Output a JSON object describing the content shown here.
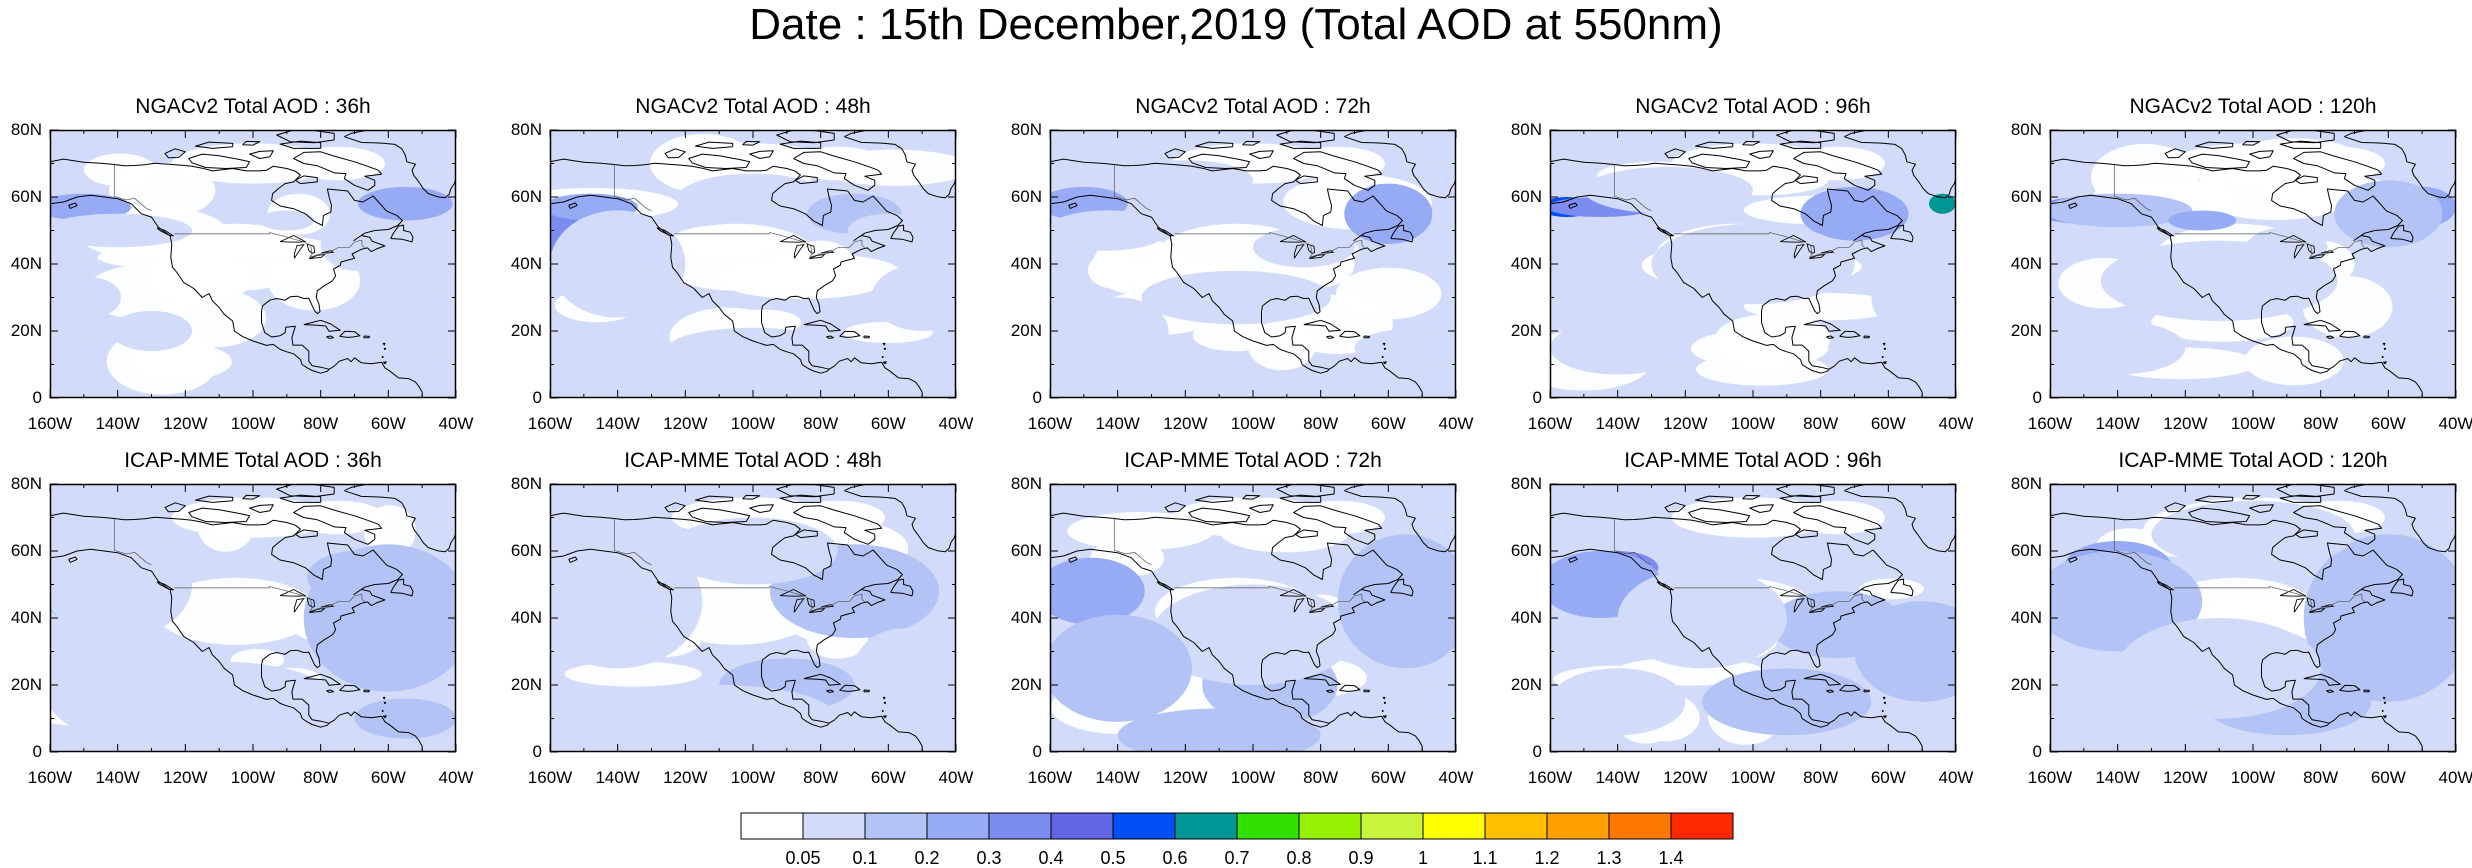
{
  "title": "Date : 15th December,2019 (Total AOD at 550nm)",
  "panels": [
    {
      "title": "NGACv2 Total AOD : 36h",
      "blobs": [
        [
          -150,
          57,
          14,
          4,
          3
        ],
        [
          -140,
          50,
          22,
          5,
          1
        ],
        [
          -55,
          58,
          14,
          5,
          3
        ],
        [
          -148,
          30,
          9,
          6,
          1
        ],
        [
          -90,
          53,
          8,
          3,
          1
        ],
        [
          -70,
          46,
          10,
          8,
          1
        ],
        [
          -130,
          20,
          12,
          6,
          1
        ],
        [
          -50,
          20,
          14,
          6,
          1
        ]
      ]
    },
    {
      "title": "NGACv2 Total AOD : 48h",
      "blobs": [
        [
          -157,
          50,
          6,
          7,
          4
        ],
        [
          -148,
          57,
          14,
          4,
          3
        ],
        [
          -140,
          40,
          20,
          16,
          1
        ],
        [
          -100,
          60,
          22,
          7,
          1
        ],
        [
          -70,
          55,
          14,
          6,
          2
        ],
        [
          -60,
          50,
          12,
          5,
          1
        ],
        [
          -100,
          15,
          25,
          6,
          1
        ],
        [
          -50,
          30,
          15,
          10,
          1
        ]
      ]
    },
    {
      "title": "NGACv2 Total AOD : 72h",
      "blobs": [
        [
          -150,
          58,
          13,
          5,
          3
        ],
        [
          -143,
          50,
          18,
          6,
          1
        ],
        [
          -58,
          53,
          8,
          6,
          4
        ],
        [
          -60,
          55,
          13,
          9,
          3
        ],
        [
          -120,
          65,
          20,
          6,
          1
        ],
        [
          -105,
          30,
          28,
          8,
          1
        ],
        [
          -85,
          45,
          15,
          6,
          1
        ],
        [
          -50,
          15,
          20,
          6,
          1
        ],
        [
          -140,
          20,
          15,
          10,
          1
        ]
      ]
    },
    {
      "title": "NGACv2 Total AOD : 96h",
      "blobs": [
        [
          -155,
          57,
          8,
          3,
          6
        ],
        [
          -145,
          57,
          16,
          3,
          4
        ],
        [
          -68,
          57,
          7,
          4,
          5
        ],
        [
          -67,
          57,
          4,
          3,
          10
        ],
        [
          -44,
          58,
          4,
          3,
          7
        ],
        [
          -70,
          55,
          16,
          8,
          3
        ],
        [
          -125,
          62,
          25,
          7,
          1
        ],
        [
          -100,
          40,
          30,
          12,
          1
        ],
        [
          -140,
          15,
          20,
          8,
          1
        ],
        [
          -50,
          30,
          15,
          12,
          1
        ]
      ]
    },
    {
      "title": "NGACv2 Total AOD : 120h",
      "blobs": [
        [
          -150,
          56,
          14,
          4,
          4
        ],
        [
          -140,
          56,
          22,
          5,
          2
        ],
        [
          -115,
          53,
          10,
          3,
          3
        ],
        [
          -50,
          57,
          10,
          6,
          3
        ],
        [
          -60,
          55,
          16,
          10,
          2
        ],
        [
          -110,
          35,
          35,
          12,
          1
        ],
        [
          -140,
          15,
          20,
          8,
          1
        ],
        [
          -90,
          45,
          12,
          6,
          1
        ]
      ]
    },
    {
      "title": "ICAP-MME Total AOD : 36h",
      "blobs": [
        [
          -150,
          48,
          12,
          10,
          2
        ],
        [
          -140,
          50,
          22,
          16,
          1
        ],
        [
          -60,
          40,
          25,
          22,
          2
        ],
        [
          -70,
          52,
          14,
          8,
          2
        ],
        [
          -110,
          15,
          35,
          12,
          1
        ],
        [
          -140,
          20,
          22,
          16,
          1
        ],
        [
          -55,
          10,
          15,
          6,
          2
        ]
      ]
    },
    {
      "title": "ICAP-MME Total AOD : 48h",
      "blobs": [
        [
          -148,
          52,
          12,
          10,
          2
        ],
        [
          -140,
          45,
          25,
          20,
          1
        ],
        [
          -70,
          48,
          25,
          14,
          2
        ],
        [
          -90,
          20,
          20,
          8,
          2
        ],
        [
          -110,
          10,
          35,
          10,
          1
        ],
        [
          -55,
          25,
          15,
          12,
          1
        ],
        [
          -100,
          60,
          25,
          10,
          1
        ]
      ]
    },
    {
      "title": "ICAP-MME Total AOD : 72h",
      "blobs": [
        [
          -148,
          48,
          9,
          5,
          4
        ],
        [
          -148,
          48,
          16,
          10,
          3
        ],
        [
          -97,
          15,
          7,
          6,
          4
        ],
        [
          -95,
          20,
          20,
          12,
          2
        ],
        [
          -100,
          35,
          30,
          15,
          1
        ],
        [
          -55,
          45,
          20,
          20,
          2
        ],
        [
          -140,
          25,
          22,
          16,
          2
        ],
        [
          -110,
          5,
          30,
          8,
          2
        ]
      ]
    },
    {
      "title": "ICAP-MME Total AOD : 96h",
      "blobs": [
        [
          -140,
          55,
          12,
          5,
          4
        ],
        [
          -145,
          50,
          18,
          10,
          3
        ],
        [
          -75,
          38,
          20,
          10,
          2
        ],
        [
          -50,
          30,
          20,
          15,
          2
        ],
        [
          -115,
          40,
          25,
          15,
          1
        ],
        [
          -90,
          15,
          25,
          10,
          2
        ],
        [
          -140,
          15,
          20,
          10,
          1
        ]
      ]
    },
    {
      "title": "ICAP-MME Total AOD : 120h",
      "blobs": [
        [
          -140,
          55,
          16,
          8,
          3
        ],
        [
          -140,
          45,
          25,
          15,
          2
        ],
        [
          -60,
          40,
          25,
          25,
          2
        ],
        [
          -90,
          15,
          25,
          10,
          2
        ],
        [
          -110,
          25,
          30,
          15,
          1
        ],
        [
          -150,
          20,
          15,
          10,
          1
        ],
        [
          -100,
          65,
          30,
          10,
          1
        ]
      ]
    }
  ],
  "y_ticks": [
    "0",
    "20N",
    "40N",
    "60N",
    "80N"
  ],
  "x_ticks": [
    "160W",
    "140W",
    "120W",
    "100W",
    "80W",
    "60W",
    "40W"
  ],
  "legend": {
    "labels": [
      "0.05",
      "0.1",
      "0.2",
      "0.3",
      "0.4",
      "0.5",
      "0.6",
      "0.7",
      "0.8",
      "0.9",
      "1",
      "1.1",
      "1.2",
      "1.3",
      "1.4"
    ],
    "colors": [
      "#ffffff",
      "#d2dcfa",
      "#b4c3f5",
      "#96aaf5",
      "#7d8cf0",
      "#6464e6",
      "#0050f5",
      "#009696",
      "#32e100",
      "#96f000",
      "#c8f53c",
      "#ffff00",
      "#ffbe00",
      "#ffa000",
      "#ff7800",
      "#ff2800"
    ]
  }
}
